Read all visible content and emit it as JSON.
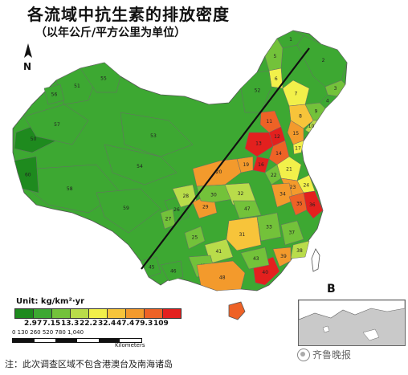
{
  "title": "各流域中抗生素的排放密度",
  "subtitle": "（以年公斤/平方公里为单位）",
  "north_label": "N",
  "legend": {
    "unit": "Unit: kg/km²·yr",
    "colors": [
      "#1e8a1e",
      "#3da832",
      "#73c23a",
      "#b9dc4a",
      "#f2f04a",
      "#f7c43a",
      "#f39a2c",
      "#ee6226",
      "#e3201e"
    ],
    "breaks": [
      "2.97",
      "7.15",
      "13.3",
      "22.2",
      "32.4",
      "47.4",
      "79.3",
      "109"
    ]
  },
  "scale_bar": {
    "labels": "0  130 260      520      780      1,040",
    "unit": "Kilometers"
  },
  "inset_label": "B",
  "watermark": "齐鲁晚报",
  "note": "注：此次调查区域不包含港澳台及南海诸岛",
  "regions": [
    {
      "id": "1",
      "color": "#3da832"
    },
    {
      "id": "2",
      "color": "#3da832"
    },
    {
      "id": "3",
      "color": "#73c23a"
    },
    {
      "id": "4",
      "color": "#3da832"
    },
    {
      "id": "5",
      "color": "#73c23a"
    },
    {
      "id": "6",
      "color": "#f2f04a"
    },
    {
      "id": "7",
      "color": "#f2f04a"
    },
    {
      "id": "8",
      "color": "#f7c43a"
    },
    {
      "id": "9",
      "color": "#73c23a"
    },
    {
      "id": "10",
      "color": "#b9dc4a"
    },
    {
      "id": "11",
      "color": "#ee6226"
    },
    {
      "id": "12",
      "color": "#e3201e"
    },
    {
      "id": "13",
      "color": "#e3201e"
    },
    {
      "id": "14",
      "color": "#ee6226"
    },
    {
      "id": "15",
      "color": "#f39a2c"
    },
    {
      "id": "16",
      "color": "#e3201e"
    },
    {
      "id": "17",
      "color": "#f2f04a"
    },
    {
      "id": "18",
      "color": "#3da832"
    },
    {
      "id": "19",
      "color": "#f39a2c"
    },
    {
      "id": "20",
      "color": "#f39a2c"
    },
    {
      "id": "21",
      "color": "#f2f04a"
    },
    {
      "id": "22",
      "color": "#73c23a"
    },
    {
      "id": "23",
      "color": "#f39a2c"
    },
    {
      "id": "24",
      "color": "#f2f04a"
    },
    {
      "id": "25",
      "color": "#73c23a"
    },
    {
      "id": "26",
      "color": "#3da832"
    },
    {
      "id": "27",
      "color": "#73c23a"
    },
    {
      "id": "28",
      "color": "#b9dc4a"
    },
    {
      "id": "29",
      "color": "#f39a2c"
    },
    {
      "id": "30",
      "color": "#73c23a"
    },
    {
      "id": "31",
      "color": "#f7c43a"
    },
    {
      "id": "32",
      "color": "#b9dc4a"
    },
    {
      "id": "33",
      "color": "#73c23a"
    },
    {
      "id": "34",
      "color": "#f39a2c"
    },
    {
      "id": "35",
      "color": "#ee6226"
    },
    {
      "id": "36",
      "color": "#e3201e"
    },
    {
      "id": "37",
      "color": "#73c23a"
    },
    {
      "id": "38",
      "color": "#b9dc4a"
    },
    {
      "id": "39",
      "color": "#f39a2c"
    },
    {
      "id": "40",
      "color": "#e3201e"
    },
    {
      "id": "41",
      "color": "#b9dc4a"
    },
    {
      "id": "42",
      "color": "#73c23a"
    },
    {
      "id": "43",
      "color": "#73c23a"
    },
    {
      "id": "44",
      "color": "#ee6226"
    },
    {
      "id": "45",
      "color": "#3da832"
    },
    {
      "id": "46",
      "color": "#3da832"
    },
    {
      "id": "47",
      "color": "#73c23a"
    },
    {
      "id": "48",
      "color": "#f39a2c"
    },
    {
      "id": "50",
      "color": "#1e8a1e"
    },
    {
      "id": "51",
      "color": "#3da832"
    },
    {
      "id": "52",
      "color": "#3da832"
    },
    {
      "id": "53",
      "color": "#3da832"
    },
    {
      "id": "54",
      "color": "#3da832"
    },
    {
      "id": "55",
      "color": "#3da832"
    },
    {
      "id": "56",
      "color": "#3da832"
    },
    {
      "id": "57",
      "color": "#3da832"
    },
    {
      "id": "58",
      "color": "#3da832"
    },
    {
      "id": "59",
      "color": "#3da832"
    },
    {
      "id": "60",
      "color": "#1e8a1e"
    }
  ]
}
